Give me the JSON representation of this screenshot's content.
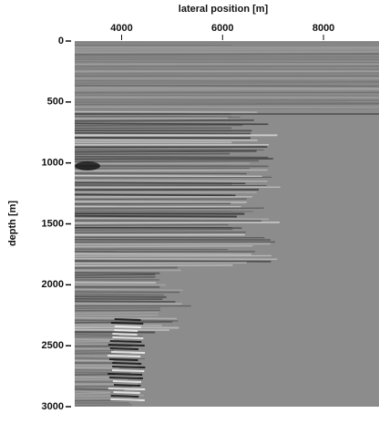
{
  "chart_data": {
    "type": "seismic-section",
    "title": "lateral position [m]",
    "ylabel": "depth [m]",
    "xlim": [
      3070,
      9100
    ],
    "xticks": [
      4000,
      6000,
      8000
    ],
    "ylim": [
      0,
      3000
    ],
    "yticks": [
      0,
      500,
      1000,
      1500,
      2000,
      2500,
      3000
    ],
    "background": "#8c8c8c"
  }
}
